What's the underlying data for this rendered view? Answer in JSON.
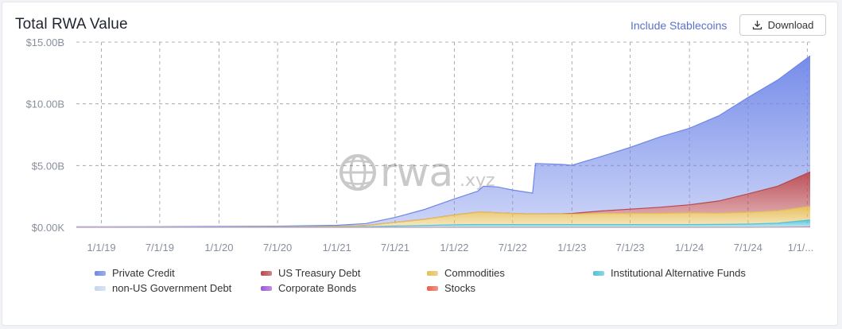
{
  "header": {
    "title": "Total RWA Value",
    "include_stablecoins_label": "Include Stablecoins",
    "download_label": "Download"
  },
  "watermark": {
    "brand": "rwa",
    "suffix": ".xyz"
  },
  "colors": {
    "private_credit": "#6f86e8",
    "us_treasury": "#b8474f",
    "commodities": "#e6be56",
    "institutional_alt_funds": "#4fc3d9",
    "non_us_gov_debt": "#c5d6ef",
    "corporate_bonds": "#9b59d6",
    "stocks": "#e8604c",
    "grid": "#9a9a9a",
    "axis_text": "#888f9c"
  },
  "chart_data": {
    "type": "area",
    "stacked": true,
    "title": "Total RWA Value",
    "xlabel": "",
    "ylabel": "",
    "ylim": [
      0,
      15
    ],
    "y_ticks": [
      0,
      5,
      10,
      15
    ],
    "y_tick_labels": [
      "$0.00K",
      "$5.00B",
      "$10.00B",
      "$15.00B"
    ],
    "x_range": [
      "2018-10-15",
      "2025-01-10"
    ],
    "x_ticks": [
      "2019-01-01",
      "2019-07-01",
      "2020-01-01",
      "2020-07-01",
      "2021-01-01",
      "2021-07-01",
      "2022-01-01",
      "2022-07-01",
      "2023-01-01",
      "2023-07-01",
      "2024-01-01",
      "2024-07-01",
      "2025-01-01"
    ],
    "x_tick_labels": [
      "1/1/19",
      "7/1/19",
      "1/1/20",
      "7/1/20",
      "1/1/21",
      "7/1/21",
      "1/1/22",
      "7/1/22",
      "1/1/23",
      "7/1/23",
      "1/1/24",
      "7/1/24",
      "1/1/..."
    ],
    "grid": true,
    "legend_position": "bottom",
    "x": [
      "2018-10-15",
      "2019-07-01",
      "2020-07-01",
      "2021-01-01",
      "2021-04-01",
      "2021-07-01",
      "2021-10-01",
      "2022-01-01",
      "2022-03-15",
      "2022-04-01",
      "2022-05-15",
      "2022-07-01",
      "2022-09-01",
      "2022-09-10",
      "2022-12-01",
      "2023-01-01",
      "2023-04-01",
      "2023-07-01",
      "2023-10-01",
      "2024-01-01",
      "2024-04-01",
      "2024-07-01",
      "2024-10-01",
      "2025-01-10"
    ],
    "series": [
      {
        "name": "Stocks",
        "values": [
          0,
          0,
          0,
          0,
          0,
          0,
          0,
          0,
          0,
          0,
          0,
          0,
          0,
          0,
          0,
          0,
          0,
          0,
          0,
          0,
          0,
          0,
          0,
          0.02
        ]
      },
      {
        "name": "Corporate Bonds",
        "values": [
          0,
          0,
          0,
          0,
          0,
          0,
          0,
          0,
          0,
          0,
          0,
          0,
          0,
          0,
          0,
          0,
          0,
          0,
          0,
          0,
          0,
          0,
          0.01,
          0.02
        ]
      },
      {
        "name": "non-US Government Debt",
        "values": [
          0,
          0,
          0,
          0,
          0,
          0,
          0,
          0,
          0,
          0,
          0,
          0,
          0,
          0,
          0,
          0,
          0,
          0,
          0,
          0,
          0,
          0.01,
          0.02,
          0.05
        ]
      },
      {
        "name": "Institutional Alternative Funds",
        "values": [
          0.02,
          0.02,
          0.03,
          0.03,
          0.05,
          0.1,
          0.15,
          0.2,
          0.22,
          0.22,
          0.22,
          0.22,
          0.22,
          0.22,
          0.22,
          0.22,
          0.22,
          0.22,
          0.22,
          0.22,
          0.23,
          0.25,
          0.3,
          0.5
        ]
      },
      {
        "name": "Commodities",
        "values": [
          0,
          0,
          0.01,
          0.05,
          0.1,
          0.3,
          0.5,
          0.8,
          1.0,
          1.0,
          0.95,
          0.9,
          0.85,
          0.85,
          0.85,
          0.85,
          0.9,
          0.9,
          0.9,
          0.95,
          0.9,
          0.95,
          1.0,
          1.1
        ]
      },
      {
        "name": "US Treasury Debt",
        "values": [
          0,
          0,
          0,
          0,
          0,
          0,
          0,
          0,
          0,
          0,
          0,
          0,
          0,
          0,
          0.02,
          0.05,
          0.2,
          0.35,
          0.5,
          0.65,
          1.0,
          1.5,
          2.0,
          2.8
        ]
      },
      {
        "name": "Private Credit",
        "values": [
          0.02,
          0.03,
          0.05,
          0.08,
          0.15,
          0.4,
          0.8,
          1.3,
          1.7,
          2.1,
          2.1,
          1.9,
          1.7,
          4.1,
          4.0,
          3.9,
          4.4,
          5.0,
          5.7,
          6.2,
          6.9,
          7.8,
          8.6,
          9.4
        ]
      }
    ]
  },
  "legend": [
    {
      "label": "Private Credit",
      "color": "#6f86e8"
    },
    {
      "label": "US Treasury Debt",
      "color": "#b8474f"
    },
    {
      "label": "Commodities",
      "color": "#e6be56"
    },
    {
      "label": "Institutional Alternative Funds",
      "color": "#4fc3d9"
    },
    {
      "label": "non-US Government Debt",
      "color": "#c5d6ef"
    },
    {
      "label": "Corporate Bonds",
      "color": "#9b59d6"
    },
    {
      "label": "Stocks",
      "color": "#e8604c"
    }
  ]
}
